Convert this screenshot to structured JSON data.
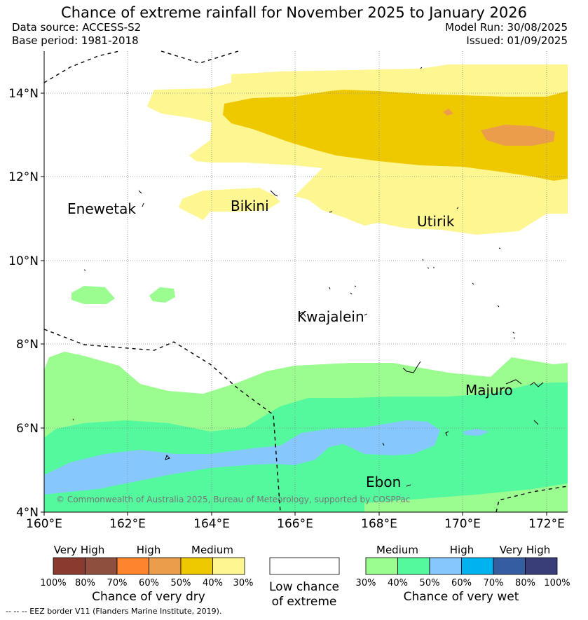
{
  "title": "Chance of extreme rainfall for November 2025 to January 2026",
  "meta": {
    "data_source": "Data source: ACCESS-S2",
    "base_period": "Base period: 1981-2018",
    "model_run": "Model Run: 30/08/2025",
    "issued": "Issued: 01/09/2025"
  },
  "axes": {
    "lat_labels": [
      "14°N",
      "12°N",
      "10°N",
      "8°N",
      "6°N",
      "4°N"
    ],
    "lon_labels": [
      "160°E",
      "162°E",
      "164°E",
      "166°E",
      "168°E",
      "170°E",
      "172°E"
    ]
  },
  "places": [
    "Enewetak",
    "Bikini",
    "Utirik",
    "Kwajalein",
    "Majuro",
    "Ebon"
  ],
  "copyright": "© Commonwealth of Australia 2025, Bureau of Meteorology, supported by COSPPac",
  "legend": {
    "dry": {
      "headers": [
        "Very High",
        "High",
        "Medium"
      ],
      "ticks": [
        "100%",
        "80%",
        "70%",
        "60%",
        "50%",
        "40%",
        "30%"
      ],
      "colors": [
        "#8b3a30",
        "#8f4f3e",
        "#fe842e",
        "#ec9d4c",
        "#efc900",
        "#fef690"
      ],
      "title": "Chance of very dry"
    },
    "low": {
      "line1": "Low chance",
      "line2": "of extreme",
      "color": "#ffffff"
    },
    "wet": {
      "headers": [
        "Medium",
        "High",
        "Very High"
      ],
      "ticks": [
        "30%",
        "40%",
        "50%",
        "60%",
        "70%",
        "80%",
        "100%"
      ],
      "colors": [
        "#9bfc90",
        "#54f89d",
        "#86c8fd",
        "#00b2f0",
        "#355ea1",
        "#393d78"
      ],
      "title": "Chance of very wet"
    }
  },
  "footnote": "--  --  -- EEZ border V11 (Flanders Marine Institute, 2019)."
}
